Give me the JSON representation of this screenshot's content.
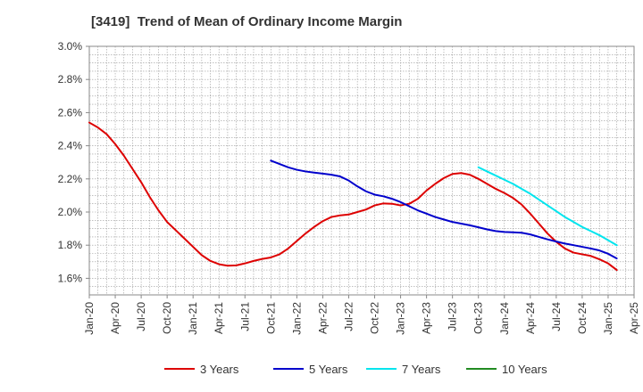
{
  "chart_data": {
    "type": "line",
    "title": "[3419]  Trend of Mean of Ordinary Income Margin",
    "xlabel": "",
    "ylabel": "",
    "x_ticks": [
      "Jan-20",
      "Apr-20",
      "Jul-20",
      "Oct-20",
      "Jan-21",
      "Apr-21",
      "Jul-21",
      "Oct-21",
      "Jan-22",
      "Apr-22",
      "Jul-22",
      "Oct-22",
      "Jan-23",
      "Apr-23",
      "Jul-23",
      "Oct-23",
      "Jan-24",
      "Apr-24",
      "Jul-24",
      "Oct-24",
      "Jan-25",
      "Apr-25"
    ],
    "y_ticks": [
      "1.6%",
      "1.8%",
      "2.0%",
      "2.2%",
      "2.4%",
      "2.6%",
      "2.8%",
      "3.0%"
    ],
    "ylim": [
      1.5,
      3.0
    ],
    "grid": true,
    "legend_position": "bottom",
    "series": [
      {
        "name": "3 Years",
        "color": "#dd0000",
        "points": [
          [
            "2020-01",
            2.54
          ],
          [
            "2020-02",
            2.51
          ],
          [
            "2020-03",
            2.47
          ],
          [
            "2020-04",
            2.41
          ],
          [
            "2020-05",
            2.34
          ],
          [
            "2020-06",
            2.26
          ],
          [
            "2020-07",
            2.18
          ],
          [
            "2020-08",
            2.09
          ],
          [
            "2020-09",
            2.01
          ],
          [
            "2020-10",
            1.94
          ],
          [
            "2020-11",
            1.89
          ],
          [
            "2020-12",
            1.84
          ],
          [
            "2021-01",
            1.79
          ],
          [
            "2021-02",
            1.74
          ],
          [
            "2021-03",
            1.705
          ],
          [
            "2021-04",
            1.685
          ],
          [
            "2021-05",
            1.676
          ],
          [
            "2021-06",
            1.678
          ],
          [
            "2021-07",
            1.69
          ],
          [
            "2021-08",
            1.705
          ],
          [
            "2021-09",
            1.717
          ],
          [
            "2021-10",
            1.726
          ],
          [
            "2021-11",
            1.745
          ],
          [
            "2021-12",
            1.78
          ],
          [
            "2022-01",
            1.825
          ],
          [
            "2022-02",
            1.87
          ],
          [
            "2022-03",
            1.91
          ],
          [
            "2022-04",
            1.945
          ],
          [
            "2022-05",
            1.97
          ],
          [
            "2022-06",
            1.98
          ],
          [
            "2022-07",
            1.985
          ],
          [
            "2022-08",
            2.0
          ],
          [
            "2022-09",
            2.015
          ],
          [
            "2022-10",
            2.04
          ],
          [
            "2022-11",
            2.052
          ],
          [
            "2022-12",
            2.05
          ],
          [
            "2023-01",
            2.04
          ],
          [
            "2023-02",
            2.05
          ],
          [
            "2023-03",
            2.08
          ],
          [
            "2023-04",
            2.13
          ],
          [
            "2023-05",
            2.17
          ],
          [
            "2023-06",
            2.205
          ],
          [
            "2023-07",
            2.23
          ],
          [
            "2023-08",
            2.235
          ],
          [
            "2023-09",
            2.225
          ],
          [
            "2023-10",
            2.2
          ],
          [
            "2023-11",
            2.17
          ],
          [
            "2023-12",
            2.14
          ],
          [
            "2024-01",
            2.115
          ],
          [
            "2024-02",
            2.085
          ],
          [
            "2024-03",
            2.045
          ],
          [
            "2024-04",
            1.99
          ],
          [
            "2024-05",
            1.93
          ],
          [
            "2024-06",
            1.87
          ],
          [
            "2024-07",
            1.82
          ],
          [
            "2024-08",
            1.78
          ],
          [
            "2024-09",
            1.755
          ],
          [
            "2024-10",
            1.745
          ],
          [
            "2024-11",
            1.735
          ],
          [
            "2024-12",
            1.715
          ],
          [
            "2025-01",
            1.69
          ],
          [
            "2025-02",
            1.65
          ]
        ]
      },
      {
        "name": "5 Years",
        "color": "#0000cc",
        "points": [
          [
            "2021-10",
            2.31
          ],
          [
            "2021-11",
            2.29
          ],
          [
            "2021-12",
            2.27
          ],
          [
            "2022-01",
            2.255
          ],
          [
            "2022-02",
            2.245
          ],
          [
            "2022-03",
            2.238
          ],
          [
            "2022-04",
            2.232
          ],
          [
            "2022-05",
            2.225
          ],
          [
            "2022-06",
            2.215
          ],
          [
            "2022-07",
            2.19
          ],
          [
            "2022-08",
            2.155
          ],
          [
            "2022-09",
            2.125
          ],
          [
            "2022-10",
            2.105
          ],
          [
            "2022-11",
            2.095
          ],
          [
            "2022-12",
            2.08
          ],
          [
            "2023-01",
            2.06
          ],
          [
            "2023-02",
            2.035
          ],
          [
            "2023-03",
            2.01
          ],
          [
            "2023-04",
            1.99
          ],
          [
            "2023-05",
            1.97
          ],
          [
            "2023-06",
            1.955
          ],
          [
            "2023-07",
            1.94
          ],
          [
            "2023-08",
            1.93
          ],
          [
            "2023-09",
            1.92
          ],
          [
            "2023-10",
            1.908
          ],
          [
            "2023-11",
            1.895
          ],
          [
            "2023-12",
            1.885
          ],
          [
            "2024-01",
            1.88
          ],
          [
            "2024-02",
            1.878
          ],
          [
            "2024-03",
            1.875
          ],
          [
            "2024-04",
            1.865
          ],
          [
            "2024-05",
            1.85
          ],
          [
            "2024-06",
            1.835
          ],
          [
            "2024-07",
            1.822
          ],
          [
            "2024-08",
            1.81
          ],
          [
            "2024-09",
            1.8
          ],
          [
            "2024-10",
            1.79
          ],
          [
            "2024-11",
            1.78
          ],
          [
            "2024-12",
            1.768
          ],
          [
            "2025-01",
            1.748
          ],
          [
            "2025-02",
            1.72
          ]
        ]
      },
      {
        "name": "7 Years",
        "color": "#00e5ee",
        "points": [
          [
            "2023-10",
            2.27
          ],
          [
            "2023-11",
            2.245
          ],
          [
            "2023-12",
            2.22
          ],
          [
            "2024-01",
            2.195
          ],
          [
            "2024-02",
            2.17
          ],
          [
            "2024-03",
            2.14
          ],
          [
            "2024-04",
            2.11
          ],
          [
            "2024-05",
            2.075
          ],
          [
            "2024-06",
            2.04
          ],
          [
            "2024-07",
            2.005
          ],
          [
            "2024-08",
            1.97
          ],
          [
            "2024-09",
            1.94
          ],
          [
            "2024-10",
            1.91
          ],
          [
            "2024-11",
            1.885
          ],
          [
            "2024-12",
            1.86
          ],
          [
            "2025-01",
            1.83
          ],
          [
            "2025-02",
            1.8
          ]
        ]
      },
      {
        "name": "10 Years",
        "color": "#228b22",
        "points": []
      }
    ]
  }
}
